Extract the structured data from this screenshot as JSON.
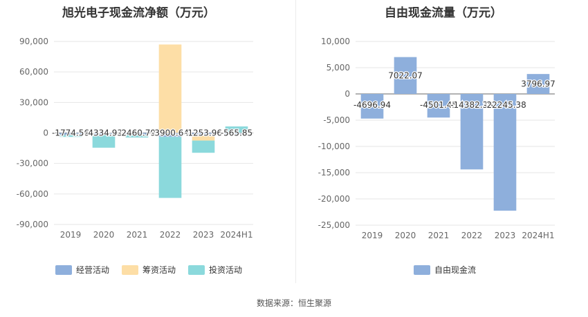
{
  "chart_data": [
    {
      "type": "bar",
      "stacked": true,
      "title": "旭光电子现金流净额（万元）",
      "categories": [
        "2019",
        "2020",
        "2021",
        "2022",
        "2023",
        "2024H1"
      ],
      "ylim": [
        -90000,
        90000
      ],
      "yticks": [
        90000,
        60000,
        30000,
        0,
        -30000,
        -60000,
        -90000
      ],
      "ytick_labels": [
        "90,000",
        "60,000",
        "30,000",
        "0",
        "-30,000",
        "-60,000",
        "-90,000"
      ],
      "grid": true,
      "legend_position": "bottom",
      "series": [
        {
          "name": "经营活动",
          "color": "#8eafdc",
          "values": [
            -2000,
            -1500,
            -1800,
            -3900.64,
            -2000,
            -800
          ]
        },
        {
          "name": "筹资活动",
          "color": "#fddea6",
          "values": [
            -300,
            300,
            -400,
            87000,
            -5500,
            400
          ]
        },
        {
          "name": "投资活动",
          "color": "#8bd9dc",
          "values": [
            -1600,
            -13000,
            -2300,
            -60000,
            -12000,
            6000
          ]
        }
      ],
      "data_labels": [
        "-1774.56",
        "-4334.93",
        "-2460.79",
        "-3900.64",
        "-1253.96",
        "-565.85"
      ]
    },
    {
      "type": "bar",
      "title": "自由现金流量（万元）",
      "categories": [
        "2019",
        "2020",
        "2021",
        "2022",
        "2023",
        "2024H1"
      ],
      "ylim": [
        -25000,
        10000
      ],
      "yticks": [
        10000,
        5000,
        0,
        -5000,
        -10000,
        -15000,
        -20000,
        -25000
      ],
      "ytick_labels": [
        "10,000",
        "5,000",
        "0",
        "-5,000",
        "-10,000",
        "-15,000",
        "-20,000",
        "-25,000"
      ],
      "grid": true,
      "legend_position": "bottom",
      "series": [
        {
          "name": "自由现金流",
          "color": "#8eafdc",
          "values": [
            -4696.94,
            7022.07,
            -4501.45,
            -14382.38,
            -22245.38,
            3796.97
          ]
        }
      ],
      "data_labels": [
        "-4696.94",
        "7022.07",
        "-4501.45",
        "-14382.38",
        "-22245.38",
        "3796.97"
      ]
    }
  ],
  "source_text": "数据来源：恒生聚源"
}
